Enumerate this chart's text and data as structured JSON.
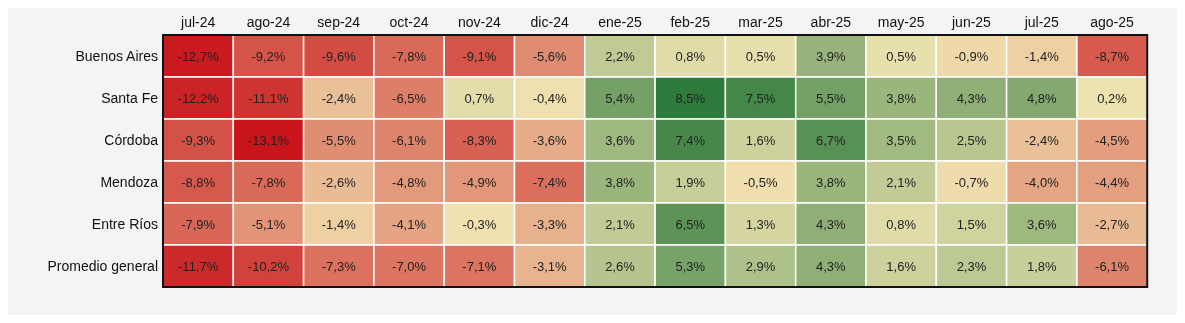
{
  "chart_data": {
    "type": "heatmap",
    "categories": [
      "jul-24",
      "ago-24",
      "sep-24",
      "oct-24",
      "nov-24",
      "dic-24",
      "ene-25",
      "feb-25",
      "mar-25",
      "abr-25",
      "may-25",
      "jun-25",
      "jul-25",
      "ago-25"
    ],
    "y_categories": [
      "Buenos Aires",
      "Santa Fe",
      "Córdoba",
      "Mendoza",
      "Entre Ríos",
      "Promedio general"
    ],
    "cells": [
      [
        -12.7,
        -9.2,
        -9.6,
        -7.8,
        -9.1,
        -5.6,
        2.2,
        0.8,
        0.5,
        3.9,
        0.5,
        -0.9,
        -1.4,
        -8.7
      ],
      [
        -12.2,
        -11.1,
        -2.4,
        -6.5,
        0.7,
        -0.4,
        5.4,
        8.5,
        7.5,
        5.5,
        3.8,
        4.3,
        4.8,
        0.2
      ],
      [
        -9.3,
        -13.1,
        -5.5,
        -6.1,
        -8.3,
        -3.6,
        3.6,
        7.4,
        1.6,
        6.7,
        3.5,
        2.5,
        -2.4,
        -4.5
      ],
      [
        -8.8,
        -7.8,
        -2.6,
        -4.8,
        -4.9,
        -7.4,
        3.8,
        1.9,
        -0.5,
        3.8,
        2.1,
        -0.7,
        -4.0,
        -4.4
      ],
      [
        -7.9,
        -5.1,
        -1.4,
        -4.1,
        -0.3,
        -3.3,
        2.1,
        6.5,
        1.3,
        4.3,
        0.8,
        1.5,
        3.6,
        -2.7
      ],
      [
        -11.7,
        -10.2,
        -7.3,
        -7.0,
        -7.1,
        -3.1,
        2.6,
        5.3,
        2.9,
        4.3,
        1.6,
        2.3,
        1.8,
        -6.1
      ]
    ],
    "cell_labels": [
      [
        "-12,7%",
        "-9,2%",
        "-9,6%",
        "-7,8%",
        "-9,1%",
        "-5,6%",
        "2,2%",
        "0,8%",
        "0,5%",
        "3,9%",
        "0,5%",
        "-0,9%",
        "-1,4%",
        "-8,7%"
      ],
      [
        "-12,2%",
        "-11,1%",
        "-2,4%",
        "-6,5%",
        "0,7%",
        "-0,4%",
        "5,4%",
        "8,5%",
        "7,5%",
        "5,5%",
        "3,8%",
        "4,3%",
        "4,8%",
        "0,2%"
      ],
      [
        "-9,3%",
        "-13,1%",
        "-5,5%",
        "-6,1%",
        "-8,3%",
        "-3,6%",
        "3,6%",
        "7,4%",
        "1,6%",
        "6,7%",
        "3,5%",
        "2,5%",
        "-2,4%",
        "-4,5%"
      ],
      [
        "-8,8%",
        "-7,8%",
        "-2,6%",
        "-4,8%",
        "-4,9%",
        "-7,4%",
        "3,8%",
        "1,9%",
        "-0,5%",
        "3,8%",
        "2,1%",
        "-0,7%",
        "-4,0%",
        "-4,4%"
      ],
      [
        "-7,9%",
        "-5,1%",
        "-1,4%",
        "-4,1%",
        "-0,3%",
        "-3,3%",
        "2,1%",
        "6,5%",
        "1,3%",
        "4,3%",
        "0,8%",
        "1,5%",
        "3,6%",
        "-2,7%"
      ],
      [
        "-11,7%",
        "-10,2%",
        "-7,3%",
        "-7,0%",
        "-7,1%",
        "-3,1%",
        "2,6%",
        "5,3%",
        "2,9%",
        "4,3%",
        "1,6%",
        "2,3%",
        "1,8%",
        "-6,1%"
      ]
    ]
  }
}
